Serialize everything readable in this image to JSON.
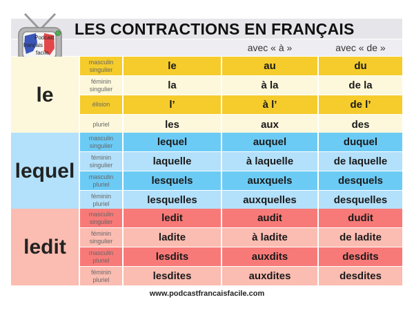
{
  "title": "LES CONTRACTIONS EN FRANÇAIS",
  "logo": {
    "line1": "Podcast",
    "line2": "français",
    "line3": "facile",
    "icon": "tv-logo-icon"
  },
  "columns": [
    "",
    "avec « à »",
    "avec « de »"
  ],
  "colors": {
    "yellow_dark": "#f5cc2c",
    "yellow_light": "#fdf8db",
    "blue_dark": "#6ccbf5",
    "blue_light": "#b3e0fa",
    "red_dark": "#f87a78",
    "red_light": "#fbbcb1"
  },
  "groups": [
    {
      "label": "le",
      "rows": [
        {
          "sub": [
            "masculin",
            "singulier"
          ],
          "values": [
            "le",
            "au",
            "du"
          ]
        },
        {
          "sub": [
            "féminin",
            "singulier"
          ],
          "values": [
            "la",
            "à la",
            "de la"
          ]
        },
        {
          "sub": [
            "élision",
            ""
          ],
          "values": [
            "l’",
            "à l’",
            "de l’"
          ]
        },
        {
          "sub": [
            "pluriel",
            ""
          ],
          "values": [
            "les",
            "aux",
            "des"
          ]
        }
      ]
    },
    {
      "label": "lequel",
      "rows": [
        {
          "sub": [
            "masculin",
            "singulier"
          ],
          "values": [
            "lequel",
            "auquel",
            "duquel"
          ]
        },
        {
          "sub": [
            "féminin",
            "singulier"
          ],
          "values": [
            "laquelle",
            "à laquelle",
            "de laquelle"
          ]
        },
        {
          "sub": [
            "masculin",
            "pluriel"
          ],
          "values": [
            "lesquels",
            "auxquels",
            "desquels"
          ]
        },
        {
          "sub": [
            "féminin",
            "pluriel"
          ],
          "values": [
            "lesquelles",
            "auxquelles",
            "desquelles"
          ]
        }
      ]
    },
    {
      "label": "ledit",
      "rows": [
        {
          "sub": [
            "masculin",
            "singulier"
          ],
          "values": [
            "ledit",
            "audit",
            "dudit"
          ]
        },
        {
          "sub": [
            "féminin",
            "singulier"
          ],
          "values": [
            "ladite",
            "à ladite",
            "de ladite"
          ]
        },
        {
          "sub": [
            "masculin",
            "pluriel"
          ],
          "values": [
            "lesdits",
            "auxdits",
            "desdits"
          ]
        },
        {
          "sub": [
            "féminin",
            "pluriel"
          ],
          "values": [
            "lesdites",
            "auxdites",
            "desdites"
          ]
        }
      ]
    }
  ],
  "footer": "www.podcastfrancaisfacile.com"
}
